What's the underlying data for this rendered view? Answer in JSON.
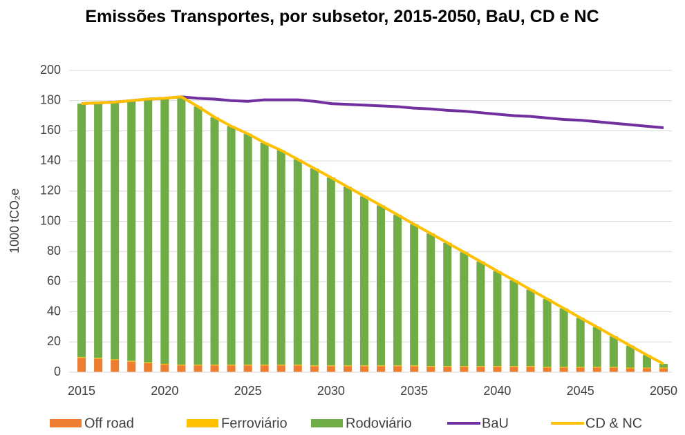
{
  "chart_data": {
    "type": "bar",
    "stacked": true,
    "title": "Emissões Transportes, por subsetor, 2015-2050, BaU, CD e NC",
    "y_label": "1000 tCO₂e",
    "x": [
      2015,
      2016,
      2017,
      2018,
      2019,
      2020,
      2021,
      2022,
      2023,
      2024,
      2025,
      2026,
      2027,
      2028,
      2029,
      2030,
      2031,
      2032,
      2033,
      2034,
      2035,
      2036,
      2037,
      2038,
      2039,
      2040,
      2041,
      2042,
      2043,
      2044,
      2045,
      2046,
      2047,
      2048,
      2049,
      2050
    ],
    "xlim": [
      2014.25,
      2050.5
    ],
    "xticks": [
      2015,
      2020,
      2025,
      2030,
      2035,
      2040,
      2045,
      2050
    ],
    "ylim": [
      0,
      200
    ],
    "yticks": [
      0,
      20,
      40,
      60,
      80,
      100,
      120,
      140,
      160,
      180,
      200
    ],
    "grid": true,
    "legend": "bottom",
    "series": [
      {
        "name": "Off road",
        "type": "bar",
        "color": "#ed7d31",
        "values": [
          9.5,
          9,
          8,
          7,
          6,
          5,
          4.5,
          4.5,
          4.5,
          4.5,
          4.5,
          4.5,
          4.5,
          4.5,
          4,
          4,
          4,
          4,
          4,
          4,
          4,
          3.5,
          3.5,
          3.5,
          3.5,
          3.5,
          3.5,
          3.5,
          3,
          3,
          3,
          3,
          3,
          2.5,
          2.5,
          2.5
        ]
      },
      {
        "name": "Ferroviário",
        "type": "bar",
        "color": "#ffc000",
        "values": [
          0.5,
          0.5,
          0.5,
          0.5,
          0.5,
          0.5,
          0.5,
          0.5,
          0.5,
          0.5,
          0.5,
          0.5,
          0.5,
          0.5,
          0.5,
          0.5,
          0.5,
          0.5,
          0.5,
          0.5,
          0.5,
          0.5,
          0.5,
          0.5,
          0.5,
          0.5,
          0.5,
          0.5,
          0.5,
          0.5,
          0.5,
          0.5,
          0.5,
          0.5,
          0.5,
          0.5
        ]
      },
      {
        "name": "Rodoviário",
        "type": "bar",
        "color": "#70ad47",
        "values": [
          168,
          169,
          170.5,
          172.5,
          174.5,
          176,
          177.5,
          171,
          164,
          158,
          153,
          147,
          142,
          136,
          130.5,
          124.5,
          118.3,
          112.1,
          106,
          99.8,
          93.5,
          87.9,
          81.7,
          75.5,
          69.3,
          63,
          56.9,
          50.7,
          45,
          38.8,
          32.5,
          26.4,
          20.2,
          14.5,
          8.3,
          2.5
        ]
      },
      {
        "name": "BaU",
        "type": "line",
        "color": "#7030a0",
        "values": [
          178,
          178.5,
          179,
          180,
          181,
          181.5,
          182.5,
          181.5,
          181,
          180,
          179.5,
          180.5,
          180.5,
          180.5,
          179.5,
          178,
          177.5,
          177,
          176.5,
          176,
          175,
          174.5,
          173.5,
          173,
          172,
          171,
          170,
          169.5,
          168.5,
          167.5,
          167,
          166,
          165,
          164,
          163,
          162
        ]
      },
      {
        "name": "CD & NC",
        "type": "line",
        "color": "#ffc000",
        "values": [
          178,
          178.5,
          179,
          180,
          181,
          181.5,
          182.5,
          176,
          169,
          163,
          158,
          152,
          147,
          141,
          135,
          129,
          122.8,
          116.6,
          110.5,
          104.3,
          98,
          91.9,
          85.7,
          79.5,
          73.3,
          67,
          60.9,
          54.7,
          48.5,
          42.3,
          36,
          29.9,
          23.7,
          17.5,
          11.3,
          5.5
        ]
      }
    ]
  }
}
